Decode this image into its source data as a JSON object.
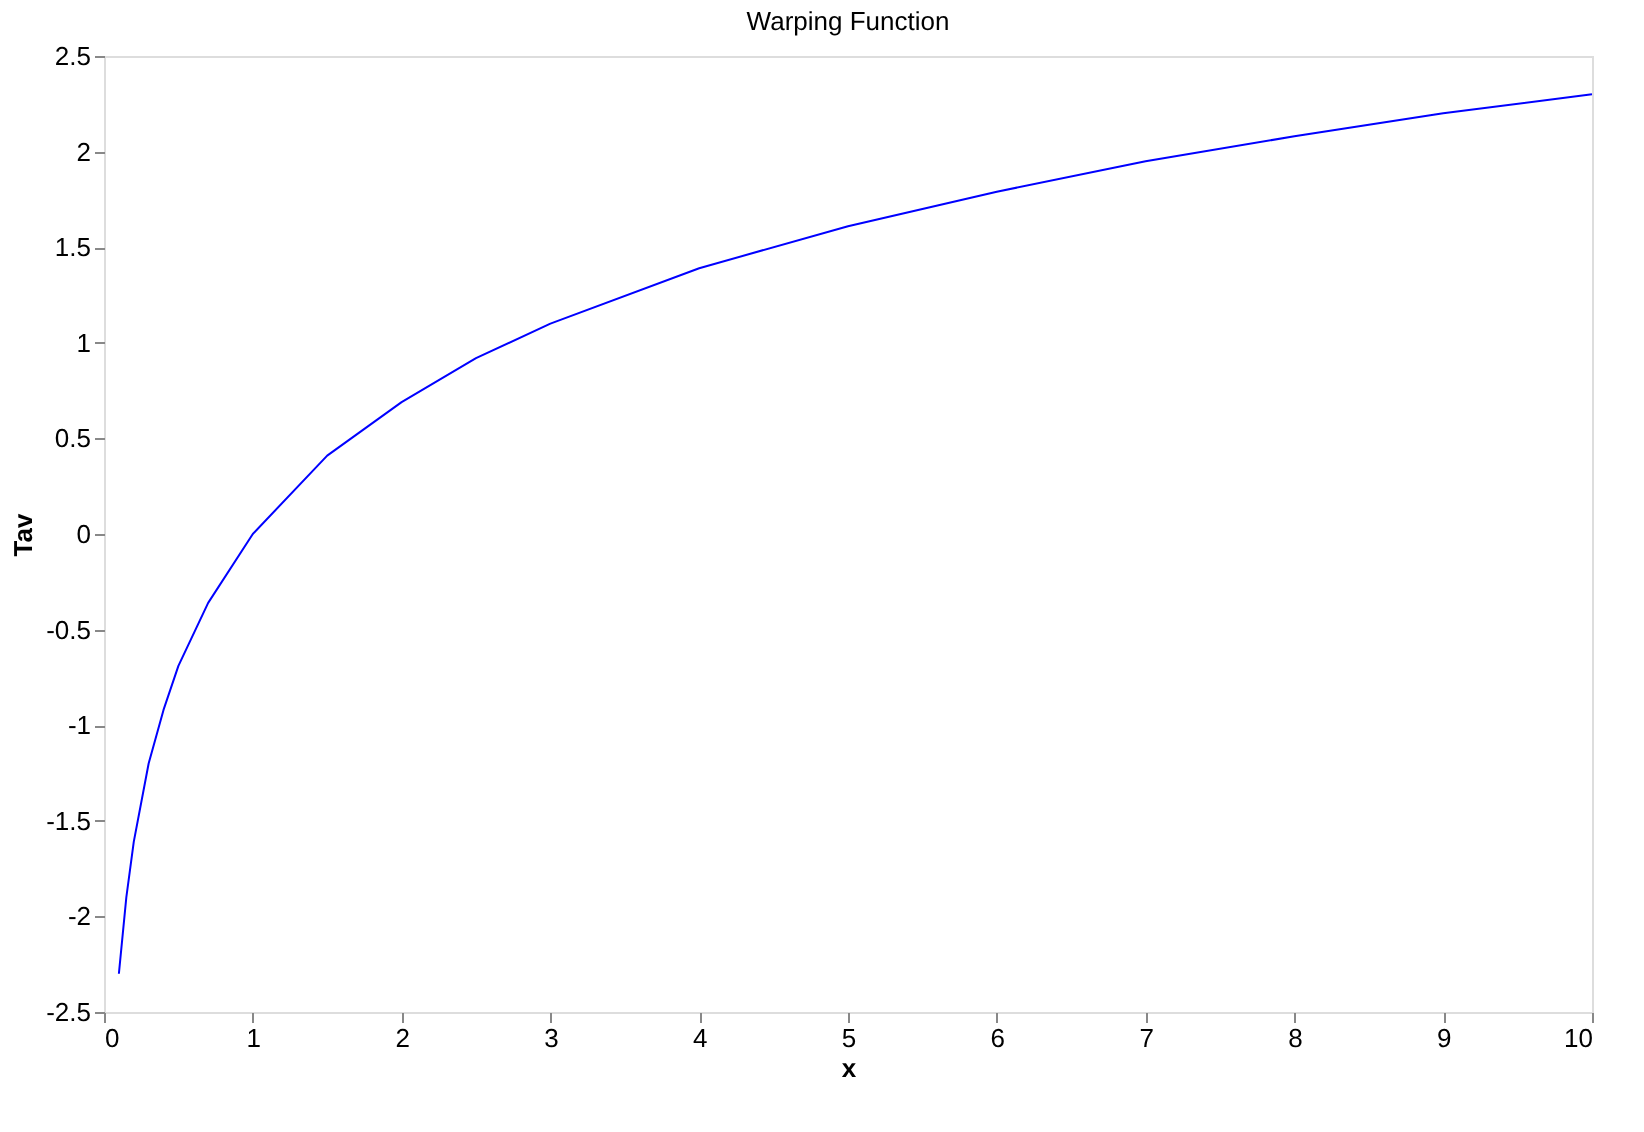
{
  "chart_data": {
    "type": "line",
    "title": "Warping Function",
    "xlabel": "x",
    "ylabel": "Tav",
    "x": [
      0.1,
      0.15,
      0.2,
      0.3,
      0.4,
      0.5,
      0.7,
      1,
      1.5,
      2,
      2.5,
      3,
      4,
      5,
      6,
      7,
      8,
      9,
      10
    ],
    "series": [
      {
        "color": "#0000ff",
        "values": [
          -2.3,
          -1.9,
          -1.61,
          -1.2,
          -0.92,
          -0.69,
          -0.36,
          0,
          0.41,
          0.69,
          0.92,
          1.1,
          1.39,
          1.61,
          1.79,
          1.95,
          2.08,
          2.2,
          2.3
        ]
      }
    ],
    "xlim": [
      0,
      10
    ],
    "xticks": [
      0,
      1,
      2,
      3,
      4,
      5,
      6,
      7,
      8,
      9,
      10
    ],
    "ylim": [
      -2.5,
      2.5
    ],
    "yticks": [
      -2.5,
      -2,
      -1.5,
      -1,
      -0.5,
      0,
      0.5,
      1,
      1.5,
      2,
      2.5
    ],
    "grid": false,
    "legend": false,
    "marker": "none",
    "line_style": "solid"
  }
}
